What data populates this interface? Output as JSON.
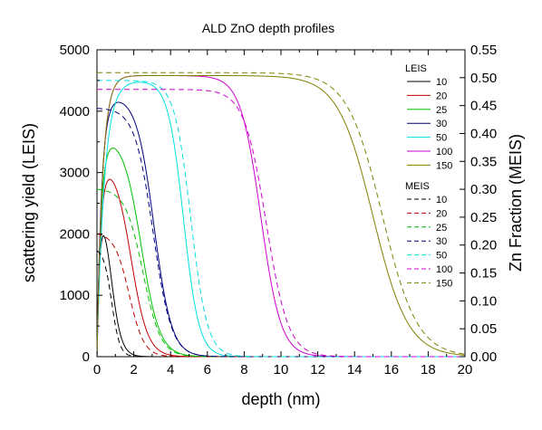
{
  "chart_data": {
    "type": "line",
    "title": "ALD ZnO depth profiles",
    "xlabel": "depth (nm)",
    "ylabel_left": "scattering yield (LEIS)",
    "ylabel_right": "Zn Fraction (MEIS)",
    "xlim": [
      0,
      20
    ],
    "ylim_left": [
      0,
      5000
    ],
    "ylim_right": [
      0,
      0.55
    ],
    "x_ticks": [
      "0",
      "2",
      "4",
      "6",
      "8",
      "10",
      "12",
      "14",
      "16",
      "18",
      "20"
    ],
    "y_left_ticks": [
      "0",
      "1000",
      "2000",
      "3000",
      "4000",
      "5000"
    ],
    "y_right_ticks": [
      "0.00",
      "0.05",
      "0.10",
      "0.15",
      "0.20",
      "0.25",
      "0.30",
      "0.35",
      "0.40",
      "0.45",
      "0.50",
      "0.55"
    ],
    "grid": false,
    "legend_groups": [
      {
        "title": "LEIS",
        "style": "solid",
        "axis": "left",
        "series": [
          {
            "name": "10",
            "color": "#000000",
            "shape": "peak",
            "peak_x": 0.3,
            "peak_y": 1950,
            "rise": 0.15,
            "fall_center": 0.75,
            "fall_width": 0.28
          },
          {
            "name": "20",
            "color": "#c00000",
            "shape": "peak",
            "peak_x": 0.45,
            "peak_y": 2750,
            "rise": 0.2,
            "fall_center": 1.85,
            "fall_width": 0.45
          },
          {
            "name": "25",
            "color": "#00c000",
            "shape": "peak",
            "peak_x": 0.6,
            "peak_y": 3300,
            "rise": 0.22,
            "fall_center": 2.4,
            "fall_width": 0.5
          },
          {
            "name": "30",
            "color": "#000080",
            "shape": "peak",
            "peak_x": 0.9,
            "peak_y": 4100,
            "rise": 0.25,
            "fall_center": 3.1,
            "fall_width": 0.48
          },
          {
            "name": "50",
            "color": "#00e0e0",
            "shape": "plateau",
            "level": 4500,
            "rise": 0.4,
            "fall_center": 4.7,
            "fall_width": 0.42
          },
          {
            "name": "100",
            "color": "#cc00cc",
            "shape": "plateau",
            "level": 4580,
            "rise": 0.3,
            "fall_center": 8.9,
            "fall_width": 0.55
          },
          {
            "name": "150",
            "color": "#808000",
            "shape": "plateau",
            "level": 4580,
            "rise": 0.3,
            "fall_center": 15.0,
            "fall_width": 0.95
          }
        ]
      },
      {
        "title": "MEIS",
        "style": "dashed",
        "axis": "right",
        "series": [
          {
            "name": "10",
            "color": "#000000",
            "shape": "decay",
            "level": 0.19,
            "fall_center": 0.8,
            "fall_width": 0.22
          },
          {
            "name": "20",
            "color": "#c00000",
            "shape": "decay",
            "level": 0.22,
            "fall_center": 1.75,
            "fall_width": 0.4
          },
          {
            "name": "25",
            "color": "#00c000",
            "shape": "decay",
            "level": 0.3,
            "fall_center": 2.5,
            "fall_width": 0.48
          },
          {
            "name": "30",
            "color": "#000080",
            "shape": "decay",
            "level": 0.445,
            "fall_center": 3.05,
            "fall_width": 0.5
          },
          {
            "name": "50",
            "color": "#00e0e0",
            "shape": "plateau",
            "level": 0.495,
            "fall_center": 5.1,
            "fall_width": 0.45
          },
          {
            "name": "100",
            "color": "#cc00cc",
            "shape": "plateau",
            "level": 0.479,
            "fall_center": 9.2,
            "fall_width": 0.6
          },
          {
            "name": "150",
            "color": "#808000",
            "shape": "plateau",
            "level": 0.509,
            "fall_center": 15.5,
            "fall_width": 0.95
          }
        ]
      }
    ]
  }
}
